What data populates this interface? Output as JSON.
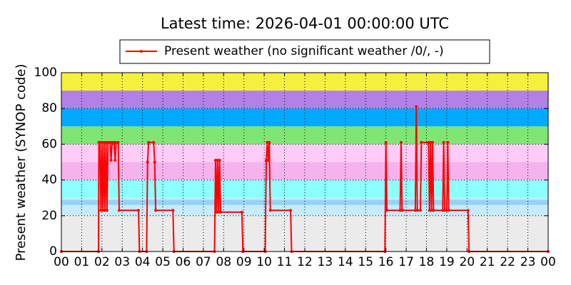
{
  "chart_data": {
    "type": "line",
    "title": "Latest time: 2026-04-01 00:00:00 UTC",
    "y_label": "Present weather (SYNOP code)",
    "x": [
      0,
      1.83,
      1.85,
      1.9,
      1.95,
      2.0,
      2.05,
      2.1,
      2.15,
      2.2,
      2.25,
      2.3,
      2.4,
      2.45,
      2.5,
      2.6,
      2.65,
      2.7,
      2.8,
      2.85,
      3.8,
      3.85,
      4.2,
      4.25,
      4.3,
      4.55,
      4.6,
      4.65,
      5.5,
      5.55,
      7.55,
      7.6,
      7.65,
      7.7,
      7.75,
      7.8,
      7.85,
      8.9,
      8.95,
      10.05,
      10.1,
      10.15,
      10.2,
      10.25,
      10.3,
      11.3,
      11.35,
      15.95,
      16.0,
      16.05,
      16.7,
      16.75,
      16.8,
      17.45,
      17.5,
      17.55,
      17.7,
      17.75,
      18.1,
      18.15,
      18.2,
      18.25,
      18.3,
      18.35,
      18.8,
      18.85,
      18.9,
      19.0,
      19.05,
      19.1,
      20.05,
      20.1,
      24
    ],
    "series": [
      {
        "name": "Present weather (no significant weather /0/, -)",
        "color": "#ff0000",
        "values": [
          0,
          0,
          61,
          61,
          23,
          61,
          23,
          61,
          23,
          61,
          23,
          61,
          61,
          51,
          61,
          61,
          51,
          61,
          61,
          23,
          23,
          0,
          0,
          50,
          61,
          61,
          50,
          23,
          23,
          0,
          0,
          51,
          22,
          51,
          22,
          51,
          22,
          22,
          0,
          0,
          51,
          61,
          51,
          61,
          23,
          23,
          0,
          0,
          61,
          23,
          23,
          61,
          23,
          23,
          81,
          23,
          23,
          61,
          61,
          23,
          61,
          23,
          61,
          23,
          23,
          61,
          23,
          23,
          61,
          23,
          23,
          0,
          0
        ]
      }
    ],
    "xlim": [
      0,
      24
    ],
    "xticks": [
      {
        "value": 0,
        "label": "00"
      },
      {
        "value": 1,
        "label": "01"
      },
      {
        "value": 2,
        "label": "02"
      },
      {
        "value": 3,
        "label": "03"
      },
      {
        "value": 4,
        "label": "04"
      },
      {
        "value": 5,
        "label": "05"
      },
      {
        "value": 6,
        "label": "06"
      },
      {
        "value": 7,
        "label": "07"
      },
      {
        "value": 8,
        "label": "08"
      },
      {
        "value": 9,
        "label": "09"
      },
      {
        "value": 10,
        "label": "10"
      },
      {
        "value": 11,
        "label": "11"
      },
      {
        "value": 12,
        "label": "12"
      },
      {
        "value": 13,
        "label": "13"
      },
      {
        "value": 14,
        "label": "14"
      },
      {
        "value": 15,
        "label": "15"
      },
      {
        "value": 16,
        "label": "16"
      },
      {
        "value": 17,
        "label": "17"
      },
      {
        "value": 18,
        "label": "18"
      },
      {
        "value": 19,
        "label": "19"
      },
      {
        "value": 20,
        "label": "20"
      },
      {
        "value": 21,
        "label": "21"
      },
      {
        "value": 22,
        "label": "22"
      },
      {
        "value": 23,
        "label": "23"
      },
      {
        "value": 24,
        "label": "00"
      }
    ],
    "ylim": [
      0,
      100
    ],
    "yticks": [
      0,
      20,
      40,
      60,
      80,
      100
    ],
    "grid": true,
    "legend": "top",
    "bands": [
      {
        "from": 0,
        "to": 20,
        "color": "#ebebeb"
      },
      {
        "from": 20,
        "to": 26,
        "color": "#c4ecfb"
      },
      {
        "from": 26,
        "to": 29,
        "color": "#99d1f5"
      },
      {
        "from": 29,
        "to": 30,
        "color": "#c4ecfb"
      },
      {
        "from": 30,
        "to": 40,
        "color": "#8cffff"
      },
      {
        "from": 40,
        "to": 50,
        "color": "#f5b3ee"
      },
      {
        "from": 50,
        "to": 60,
        "color": "#ffccf7"
      },
      {
        "from": 60,
        "to": 70,
        "color": "#80e673"
      },
      {
        "from": 70,
        "to": 80,
        "color": "#00aaff"
      },
      {
        "from": 80,
        "to": 90,
        "color": "#b380e6"
      },
      {
        "from": 90,
        "to": 100,
        "color": "#f5f03c"
      }
    ]
  }
}
